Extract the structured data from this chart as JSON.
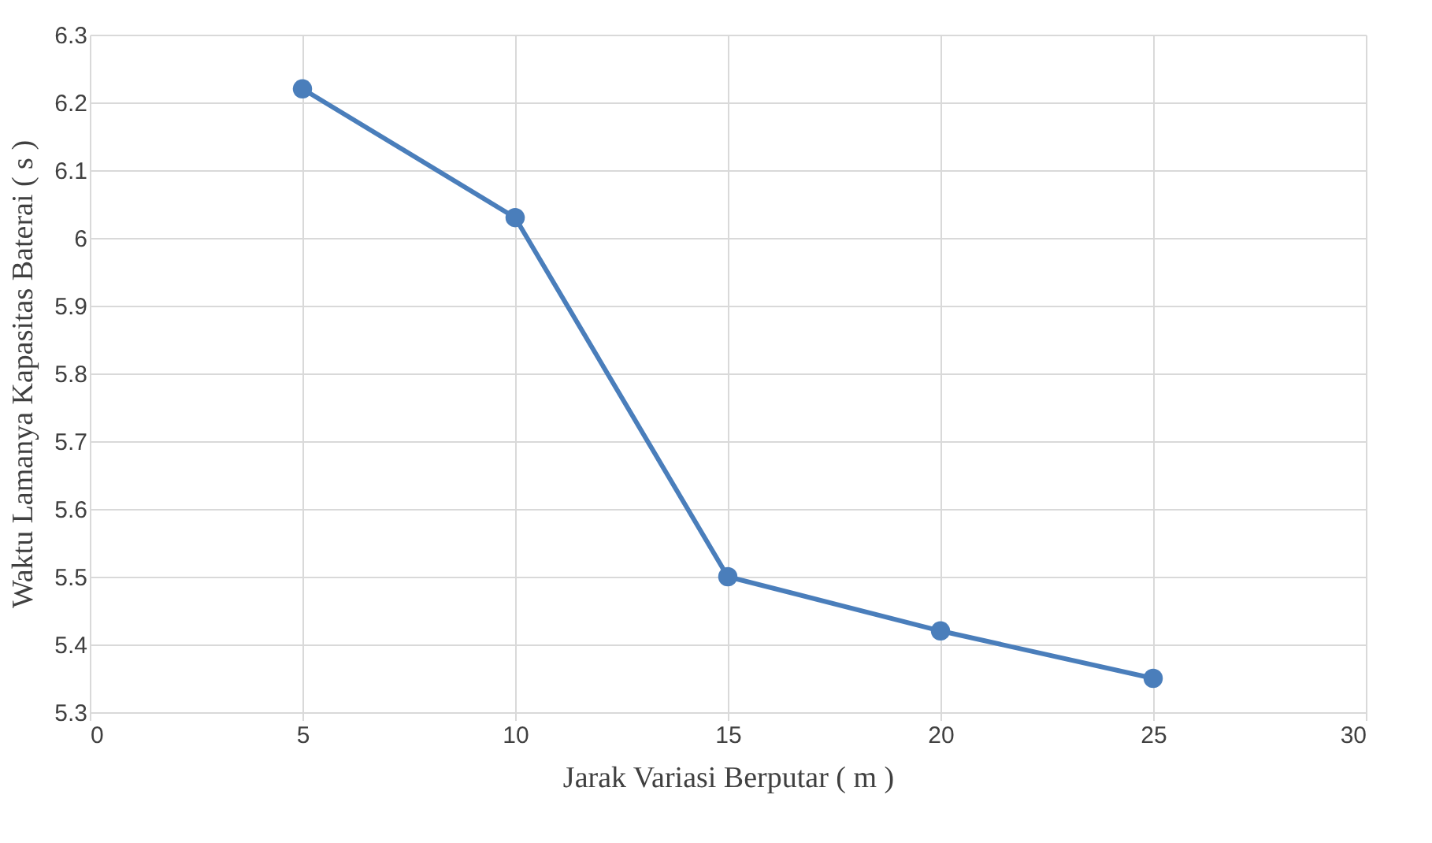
{
  "chart_data": {
    "type": "line",
    "xlabel": "Jarak Variasi Berputar ( m )",
    "ylabel": "Waktu Lamanya Kapasitas Baterai ( s )",
    "x": [
      5,
      10,
      15,
      20,
      25
    ],
    "series": [
      {
        "color": "#4a7ebb",
        "values": [
          6.22,
          6.03,
          5.5,
          5.42,
          5.35
        ]
      }
    ],
    "xlim": [
      0,
      30
    ],
    "xticks": [
      0,
      5,
      10,
      15,
      20,
      25,
      30
    ],
    "ylim": [
      5.3,
      6.3
    ],
    "yticks": [
      5.3,
      5.4,
      5.5,
      5.6,
      5.7,
      5.8,
      5.9,
      6,
      6.1,
      6.2,
      6.3
    ],
    "grid": true,
    "marker": "circle",
    "line_style": "solid"
  }
}
